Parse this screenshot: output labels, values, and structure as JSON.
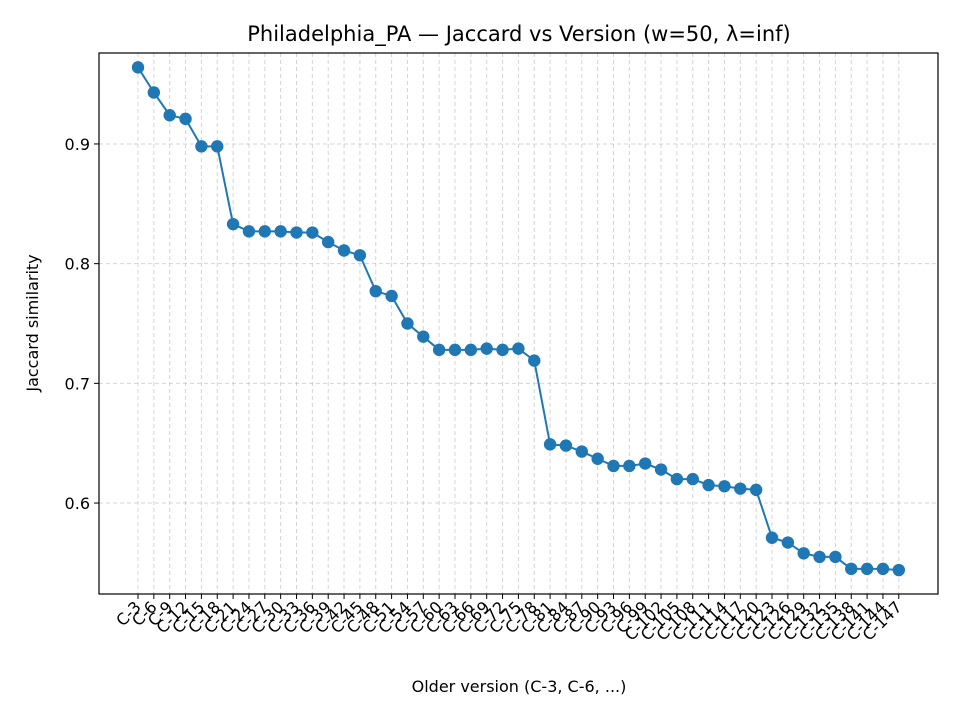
{
  "chart_data": {
    "type": "line",
    "title": "Philadelphia_PA — Jaccard vs Version (w=50, λ=inf)",
    "xlabel": "Older version (C-3, C-6, ...)",
    "ylabel": "Jaccard similarity",
    "ylim": [
      0.524,
      0.976
    ],
    "yticks": [
      "0.6",
      "0.7",
      "0.8",
      "0.9"
    ],
    "ytick_values": [
      0.6,
      0.7,
      0.8,
      0.9
    ],
    "grid": true,
    "color": "#1f77b4",
    "categories": [
      "C-3",
      "C-6",
      "C-9",
      "C-12",
      "C-15",
      "C-18",
      "C-21",
      "C-24",
      "C-27",
      "C-30",
      "C-33",
      "C-36",
      "C-39",
      "C-42",
      "C-45",
      "C-48",
      "C-51",
      "C-54",
      "C-57",
      "C-60",
      "C-63",
      "C-66",
      "C-69",
      "C-72",
      "C-75",
      "C-78",
      "C-81",
      "C-84",
      "C-87",
      "C-90",
      "C-93",
      "C-96",
      "C-99",
      "C-102",
      "C-105",
      "C-108",
      "C-111",
      "C-114",
      "C-117",
      "C-120",
      "C-123",
      "C-126",
      "C-129",
      "C-132",
      "C-135",
      "C-138",
      "C-141",
      "C-144",
      "C-147"
    ],
    "values": [
      0.964,
      0.943,
      0.924,
      0.921,
      0.898,
      0.898,
      0.833,
      0.827,
      0.827,
      0.827,
      0.826,
      0.826,
      0.818,
      0.811,
      0.807,
      0.777,
      0.773,
      0.75,
      0.739,
      0.728,
      0.728,
      0.728,
      0.729,
      0.728,
      0.729,
      0.719,
      0.649,
      0.648,
      0.643,
      0.637,
      0.631,
      0.631,
      0.633,
      0.628,
      0.62,
      0.62,
      0.615,
      0.614,
      0.612,
      0.611,
      0.571,
      0.567,
      0.558,
      0.555,
      0.555,
      0.545,
      0.545,
      0.545,
      0.544
    ]
  }
}
